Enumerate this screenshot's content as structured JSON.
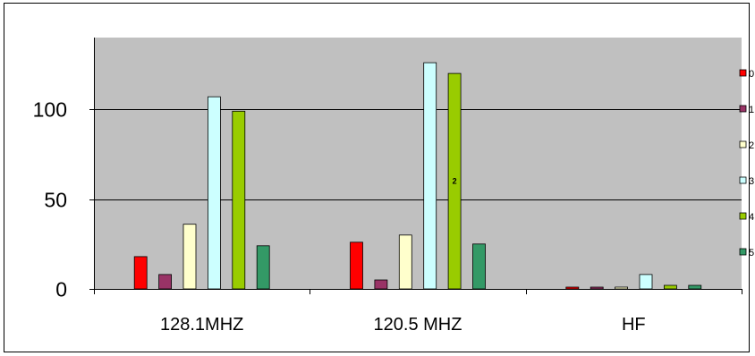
{
  "chart_data": {
    "type": "bar",
    "title": "",
    "xlabel": "",
    "ylabel": "",
    "categories": [
      "128.1MHZ",
      "120.5 MHZ",
      "HF"
    ],
    "ylim": [
      0,
      140
    ],
    "yticks": [
      0,
      50,
      100
    ],
    "grid": true,
    "legend_position": "right",
    "background_color": "#c0c0c0",
    "series": [
      {
        "name": "0",
        "color": "#ff0000",
        "values": [
          18,
          26,
          1
        ]
      },
      {
        "name": "1",
        "color": "#993366",
        "values": [
          8,
          5,
          1
        ]
      },
      {
        "name": "2",
        "color": "#ffffcc",
        "values": [
          36,
          30,
          1
        ]
      },
      {
        "name": "3",
        "color": "#ccffff",
        "values": [
          107,
          126,
          8
        ]
      },
      {
        "name": "4",
        "color": "#99cc00",
        "values": [
          99,
          120,
          2
        ]
      },
      {
        "name": "5",
        "color": "#339966",
        "values": [
          24,
          25,
          2
        ]
      }
    ],
    "annotations": [
      {
        "text": "2",
        "category": 1,
        "series": 4
      }
    ]
  }
}
